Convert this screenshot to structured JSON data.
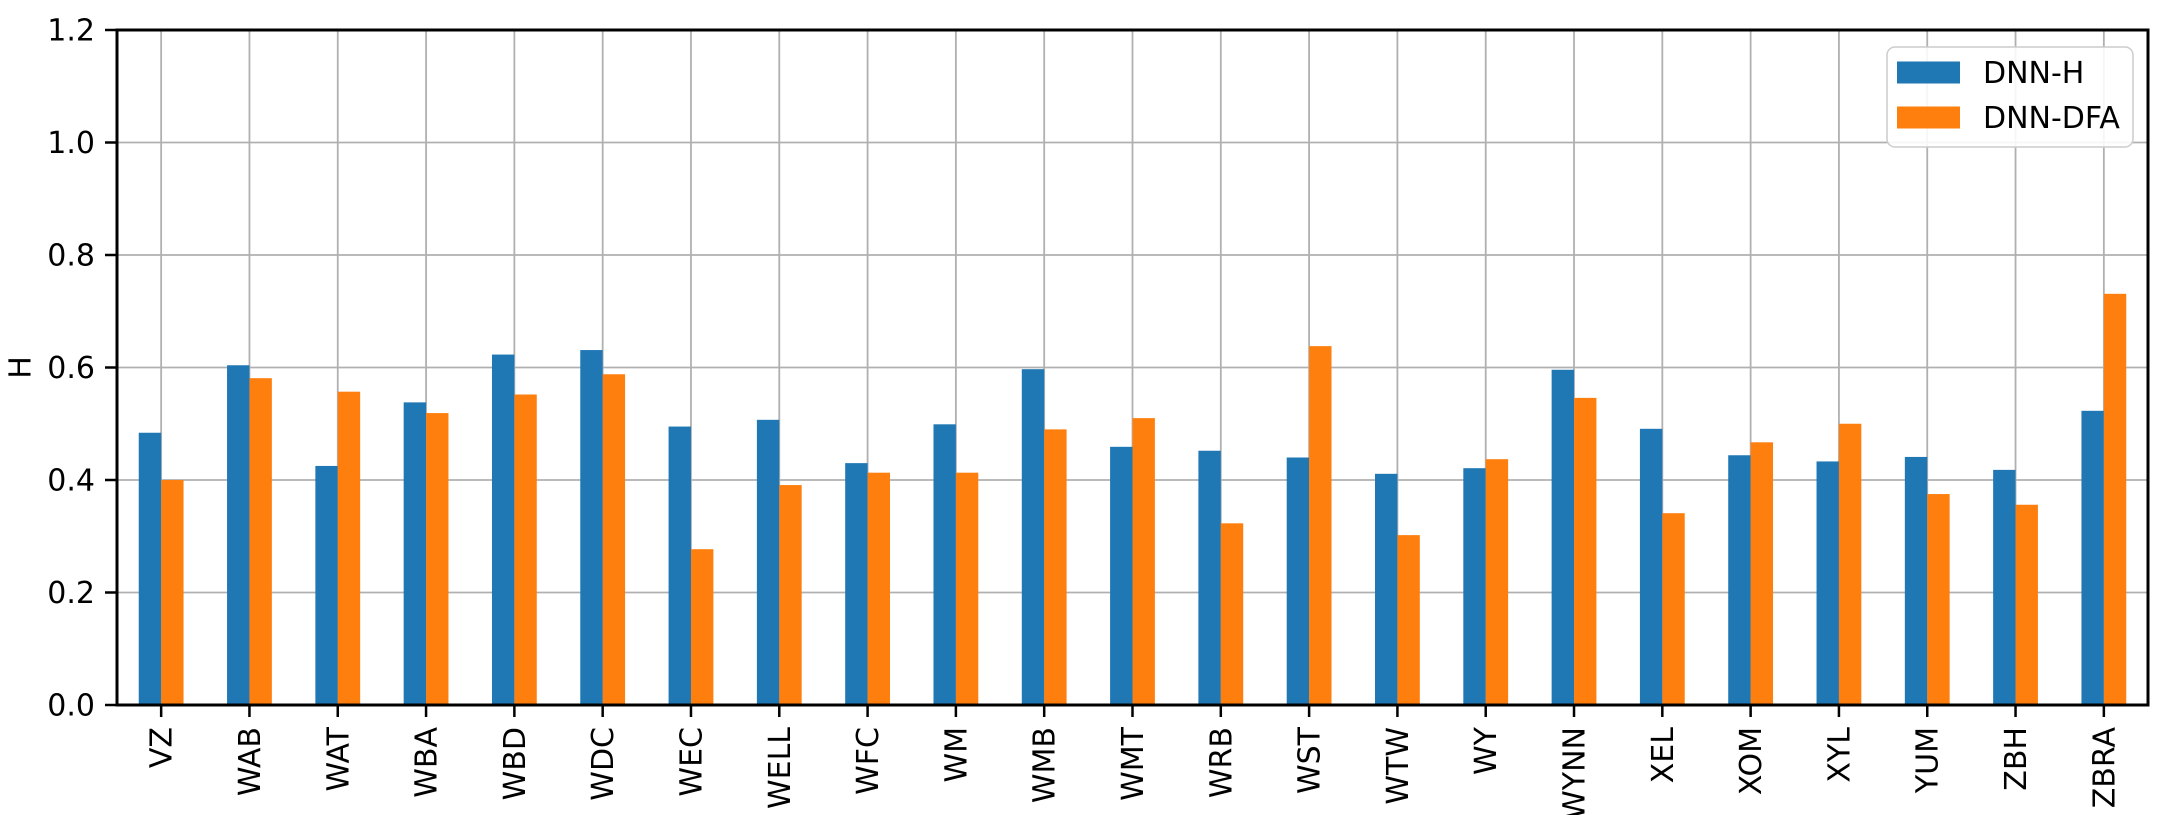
{
  "chart_data": {
    "type": "bar",
    "title": "",
    "xlabel": "",
    "ylabel": "H",
    "ylim": [
      0.0,
      1.2
    ],
    "yticks": [
      "0.0",
      "0.2",
      "0.4",
      "0.6",
      "0.8",
      "1.0",
      "1.2"
    ],
    "grid": true,
    "grid_color": "#b0b0b0",
    "axis_color": "#000000",
    "legend_position": "upper right",
    "categories": [
      "VZ",
      "WAB",
      "WAT",
      "WBA",
      "WBD",
      "WDC",
      "WEC",
      "WELL",
      "WFC",
      "WM",
      "WMB",
      "WMT",
      "WRB",
      "WST",
      "WTW",
      "WY",
      "WYNN",
      "XEL",
      "XOM",
      "XYL",
      "YUM",
      "ZBH",
      "ZBRA"
    ],
    "series": [
      {
        "name": "DNN-H",
        "color": "#1f77b4",
        "values": [
          0.484,
          0.604,
          0.425,
          0.538,
          0.623,
          0.631,
          0.495,
          0.507,
          0.43,
          0.499,
          0.597,
          0.459,
          0.452,
          0.44,
          0.411,
          0.421,
          0.596,
          0.491,
          0.444,
          0.433,
          0.441,
          0.418,
          0.523
        ]
      },
      {
        "name": "DNN-DFA",
        "color": "#ff7f0e",
        "values": [
          0.4,
          0.581,
          0.557,
          0.519,
          0.552,
          0.588,
          0.277,
          0.391,
          0.413,
          0.413,
          0.49,
          0.51,
          0.323,
          0.638,
          0.302,
          0.437,
          0.546,
          0.341,
          0.467,
          0.5,
          0.375,
          0.356,
          0.731
        ]
      }
    ]
  }
}
